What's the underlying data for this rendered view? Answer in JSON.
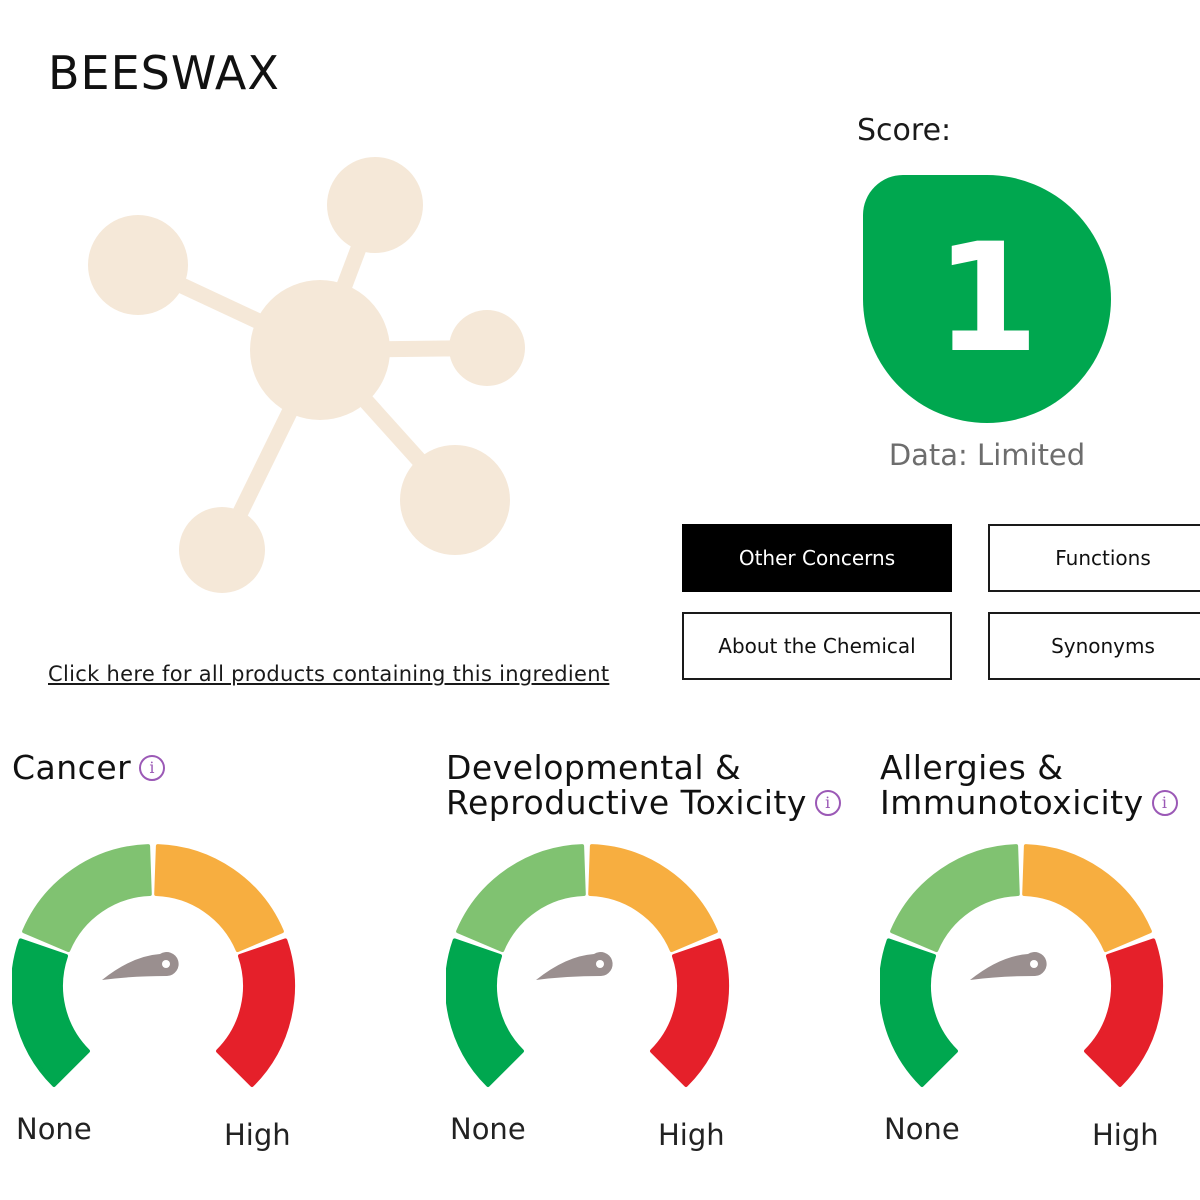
{
  "ingredient": {
    "name": "BEESWAX",
    "image_icon": "molecule-icon"
  },
  "score": {
    "label": "Score:",
    "value": "1",
    "color": "#00a74f",
    "data_availability": "Data: Limited"
  },
  "tabs": [
    {
      "label": "Other Concerns",
      "active": true
    },
    {
      "label": "Functions",
      "active": false
    },
    {
      "label": "About the Chemical",
      "active": false
    },
    {
      "label": "Synonyms",
      "active": false
    }
  ],
  "products_link": "Click here for all products containing this ingredient",
  "concerns": [
    {
      "title_lines": [
        "Cancer"
      ],
      "level": "None",
      "min_label": "None",
      "max_label": "High",
      "info_icon": "info-icon"
    },
    {
      "title_lines": [
        "Developmental &",
        "Reproductive Toxicity"
      ],
      "level": "None",
      "min_label": "None",
      "max_label": "High",
      "info_icon": "info-icon"
    },
    {
      "title_lines": [
        "Allergies &",
        "Immunotoxicity"
      ],
      "level": "None",
      "min_label": "None",
      "max_label": "High",
      "info_icon": "info-icon"
    }
  ],
  "gauge_colors": {
    "low": "#00a74f",
    "low_moderate": "#80c271",
    "moderate": "#f7ae40",
    "high": "#e5202a",
    "needle": "#9a8f8f"
  },
  "molecule_color": "#f5e8d8"
}
